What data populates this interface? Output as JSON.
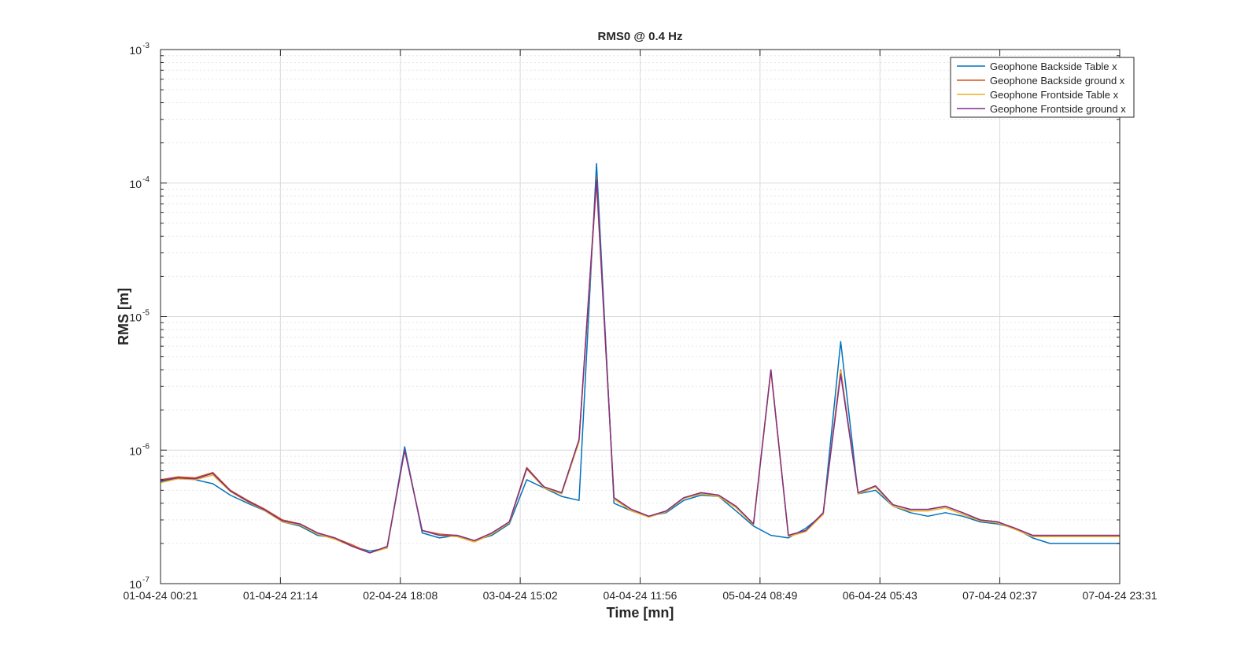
{
  "chart_data": {
    "type": "line",
    "title": "RMS0 @ 0.4 Hz",
    "xlabel": "Time [mn]",
    "ylabel": "RMS [m]",
    "yscale": "log",
    "ylim": [
      1e-07,
      0.001
    ],
    "yticks": [
      {
        "mantissa": "10",
        "exp": "-7"
      },
      {
        "mantissa": "10",
        "exp": "-6"
      },
      {
        "mantissa": "10",
        "exp": "-5"
      },
      {
        "mantissa": "10",
        "exp": "-4"
      },
      {
        "mantissa": "10",
        "exp": "-3"
      }
    ],
    "xticks": [
      "01-04-24 00:21",
      "01-04-24 21:14",
      "02-04-24 18:08",
      "03-04-24 15:02",
      "04-04-24 11:56",
      "05-04-24 08:49",
      "06-04-24 05:43",
      "07-04-24 02:37",
      "07-04-24 23:31"
    ],
    "grid": true,
    "legend_position": "top-right",
    "x": [
      "01-04-24 00:21",
      "01-04-24 04:05",
      "01-04-24 07:49",
      "01-04-24 11:34",
      "01-04-24 15:18",
      "01-04-24 19:02",
      "01-04-24 22:46",
      "02-04-24 02:30",
      "02-04-24 06:14",
      "02-04-24 09:59",
      "02-04-24 13:43",
      "02-04-24 17:27",
      "02-04-24 21:11",
      "02-04-24 22:34",
      "03-04-24 00:55",
      "03-04-24 04:28",
      "03-04-24 06:22",
      "03-04-24 07:28",
      "03-04-24 08:40",
      "03-04-24 12:24",
      "03-04-24 16:08",
      "03-04-24 19:52",
      "03-04-24 23:36",
      "04-04-24 03:21",
      "04-04-24 07:05",
      "04-04-24 09:02",
      "04-04-24 09:36",
      "04-04-24 10:50",
      "04-04-24 11:56",
      "04-04-24 12:32",
      "04-04-24 16:15",
      "04-04-24 19:59",
      "04-04-24 23:43",
      "05-04-24 03:27",
      "05-04-24 07:11",
      "05-04-24 10:55",
      "05-04-24 14:39",
      "05-04-24 18:23",
      "05-04-24 22:07",
      "05-04-24 23:55",
      "06-04-24 01:02",
      "06-04-24 02:23",
      "06-04-24 06:08",
      "06-04-24 07:34",
      "06-04-24 08:36",
      "06-04-24 09:37",
      "06-04-24 13:21",
      "06-04-24 17:05",
      "06-04-24 20:49",
      "07-04-24 00:33",
      "07-04-24 04:17",
      "07-04-24 08:01",
      "07-04-24 11:45",
      "07-04-24 15:29",
      "07-04-24 19:13",
      "07-04-24 23:31"
    ],
    "series": [
      {
        "name": "Geophone Backside Table x",
        "color": "#0072BD",
        "values": [
          5.8e-07,
          6.2e-07,
          6e-07,
          5.6e-07,
          4.6e-07,
          4e-07,
          3.5e-07,
          2.9e-07,
          2.7e-07,
          2.3e-07,
          2.2e-07,
          1.9e-07,
          1.75e-07,
          1.85e-07,
          1.06e-06,
          2.4e-07,
          2.2e-07,
          2.3e-07,
          2.1e-07,
          2.3e-07,
          2.8e-07,
          6e-07,
          5.2e-07,
          4.5e-07,
          4.2e-07,
          0.00014,
          4e-07,
          3.5e-07,
          3.2e-07,
          3.4e-07,
          4.2e-07,
          4.6e-07,
          4.5e-07,
          3.5e-07,
          2.7e-07,
          2.3e-07,
          2.2e-07,
          2.6e-07,
          3.3e-07,
          6.5e-06,
          4.7e-07,
          5e-07,
          3.8e-07,
          3.4e-07,
          3.2e-07,
          3.4e-07,
          3.2e-07,
          2.9e-07,
          2.8e-07,
          2.6e-07,
          2.2e-07,
          2e-07,
          2e-07,
          2e-07,
          2e-07,
          2e-07
        ]
      },
      {
        "name": "Geophone Backside ground x",
        "color": "#D95319",
        "values": [
          6e-07,
          6.3e-07,
          6.2e-07,
          6.8e-07,
          5e-07,
          4.2e-07,
          3.6e-07,
          3e-07,
          2.8e-07,
          2.4e-07,
          2.2e-07,
          1.95e-07,
          1.7e-07,
          1.9e-07,
          1e-06,
          2.5e-07,
          2.35e-07,
          2.3e-07,
          2.1e-07,
          2.4e-07,
          2.9e-07,
          7.4e-07,
          5.3e-07,
          4.8e-07,
          1.2e-06,
          0.00011,
          4.4e-07,
          3.6e-07,
          3.2e-07,
          3.5e-07,
          4.4e-07,
          4.8e-07,
          4.6e-07,
          3.8e-07,
          2.8e-07,
          4e-06,
          2.3e-07,
          2.5e-07,
          3.4e-07,
          4e-06,
          4.8e-07,
          5.4e-07,
          3.9e-07,
          3.6e-07,
          3.6e-07,
          3.8e-07,
          3.4e-07,
          3e-07,
          2.9e-07,
          2.6e-07,
          2.3e-07,
          2.3e-07,
          2.3e-07,
          2.3e-07,
          2.3e-07,
          2.3e-07
        ]
      },
      {
        "name": "Geophone Frontside Table x",
        "color": "#EDB120",
        "values": [
          5.7e-07,
          6.1e-07,
          6e-07,
          6.5e-07,
          4.9e-07,
          4.1e-07,
          3.5e-07,
          2.9e-07,
          2.75e-07,
          2.35e-07,
          2.15e-07,
          1.9e-07,
          1.7e-07,
          1.85e-07,
          1e-06,
          2.5e-07,
          2.3e-07,
          2.25e-07,
          2.05e-07,
          2.35e-07,
          2.85e-07,
          7.2e-07,
          5.2e-07,
          4.7e-07,
          1.15e-06,
          0.0001,
          4.3e-07,
          3.5e-07,
          3.15e-07,
          3.45e-07,
          4.35e-07,
          4.7e-07,
          4.5e-07,
          3.7e-07,
          2.75e-07,
          3.9e-06,
          2.25e-07,
          2.45e-07,
          3.3e-07,
          3.9e-06,
          4.7e-07,
          5.3e-07,
          3.8e-07,
          3.5e-07,
          3.5e-07,
          3.7e-07,
          3.3e-07,
          2.95e-07,
          2.85e-07,
          2.55e-07,
          2.25e-07,
          2.25e-07,
          2.25e-07,
          2.25e-07,
          2.25e-07,
          2.25e-07
        ]
      },
      {
        "name": "Geophone Frontside ground x",
        "color": "#7E2F8E",
        "values": [
          5.9e-07,
          6.2e-07,
          6.1e-07,
          6.7e-07,
          4.95e-07,
          4.15e-07,
          3.55e-07,
          2.95e-07,
          2.8e-07,
          2.4e-07,
          2.2e-07,
          1.9e-07,
          1.7e-07,
          1.9e-07,
          1e-06,
          2.5e-07,
          2.3e-07,
          2.3e-07,
          2.1e-07,
          2.4e-07,
          2.9e-07,
          7.3e-07,
          5.3e-07,
          4.8e-07,
          1.2e-06,
          0.000105,
          4.4e-07,
          3.6e-07,
          3.2e-07,
          3.5e-07,
          4.4e-07,
          4.8e-07,
          4.6e-07,
          3.8e-07,
          2.8e-07,
          4e-06,
          2.3e-07,
          2.5e-07,
          3.4e-07,
          3.7e-06,
          4.8e-07,
          5.4e-07,
          3.9e-07,
          3.6e-07,
          3.6e-07,
          3.8e-07,
          3.4e-07,
          3e-07,
          2.9e-07,
          2.6e-07,
          2.3e-07,
          2.3e-07,
          2.3e-07,
          2.3e-07,
          2.3e-07,
          2.3e-07
        ]
      }
    ]
  }
}
